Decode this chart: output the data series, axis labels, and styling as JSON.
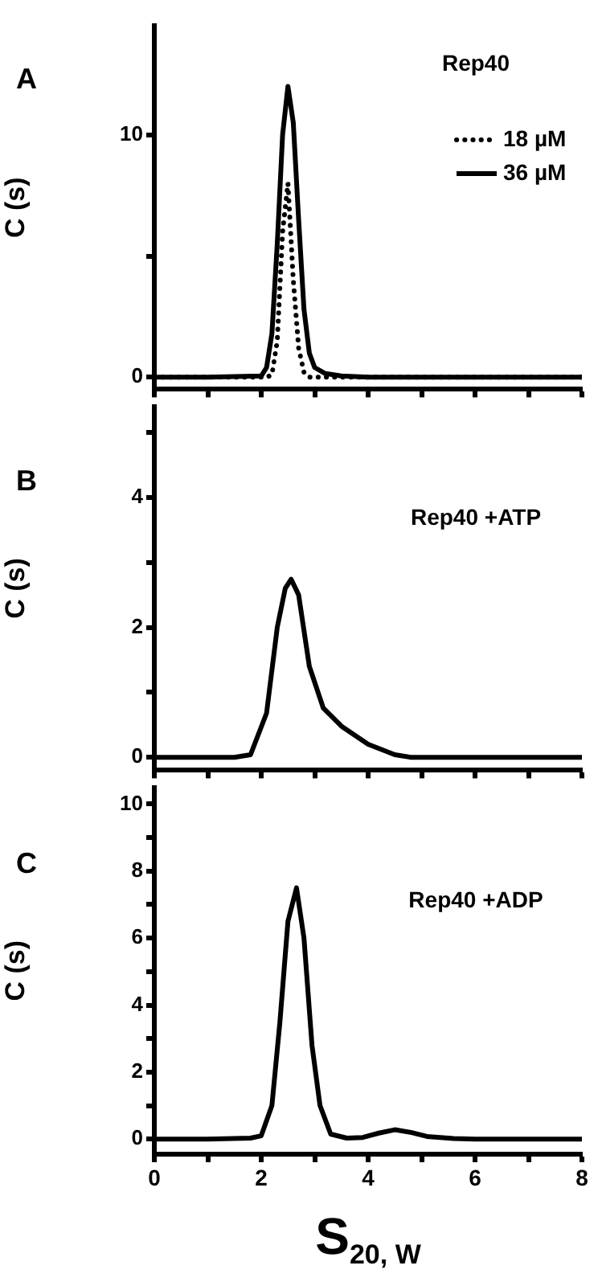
{
  "chart_data": [
    {
      "type": "line",
      "title": "A",
      "annotations": [
        "Rep40"
      ],
      "ylabel": "C (s)",
      "legend": "top right",
      "tick_labels": "y",
      "grid": false,
      "xlim": [
        0,
        8
      ],
      "xticks": [
        0,
        {
          "value": 1,
          "label": null
        },
        2,
        {
          "value": 3,
          "label": null
        },
        4,
        {
          "value": 5,
          "label": null
        },
        6,
        {
          "value": 7,
          "label": null
        },
        8
      ],
      "ylim": [
        -0.5,
        14.5
      ],
      "yticks": [
        0,
        {
          "value": 5,
          "label": null
        },
        10
      ],
      "series": [
        {
          "name": "18 µM",
          "color": "#000000",
          "line_style": "dotted",
          "x": [
            0,
            1,
            2,
            2.1,
            2.2,
            2.3,
            2.4,
            2.5,
            2.6,
            2.7,
            2.8,
            2.9,
            3.0,
            4,
            5,
            6,
            7,
            8
          ],
          "values": [
            0,
            0,
            0,
            0,
            0.1,
            1.5,
            6,
            8,
            4,
            1.2,
            0.2,
            0,
            0,
            0,
            0,
            0,
            0,
            0
          ]
        },
        {
          "name": "36 µM",
          "color": "#000000",
          "line_style": "solid",
          "x": [
            0,
            1,
            2,
            2.1,
            2.2,
            2.3,
            2.4,
            2.5,
            2.6,
            2.7,
            2.8,
            2.9,
            3.0,
            3.2,
            3.5,
            4,
            5,
            6,
            7,
            8
          ],
          "values": [
            0,
            0,
            0.05,
            0.4,
            1.8,
            5.5,
            10,
            12,
            10.5,
            6.5,
            2.8,
            1.0,
            0.4,
            0.15,
            0.05,
            0,
            0,
            0,
            0,
            0
          ]
        }
      ]
    },
    {
      "type": "line",
      "title": "B",
      "annotations": [
        "Rep40 +ATP"
      ],
      "ylabel": "C (s)",
      "tick_labels": "y",
      "grid": false,
      "xlim": [
        0,
        8
      ],
      "xticks": [
        0,
        {
          "value": 1,
          "label": null
        },
        2,
        {
          "value": 3,
          "label": null
        },
        4,
        {
          "value": 5,
          "label": null
        },
        6,
        {
          "value": 7,
          "label": null
        },
        8
      ],
      "ylim": [
        -0.2,
        5.4
      ],
      "yticks": [
        0,
        {
          "value": 1,
          "label": null
        },
        2,
        {
          "value": 3,
          "label": null
        },
        4,
        {
          "value": 5,
          "label": null
        }
      ],
      "series": [
        {
          "color": "#000000",
          "line_style": "solid",
          "x": [
            0,
            1,
            1.5,
            1.8,
            2.1,
            2.3,
            2.45,
            2.56,
            2.7,
            2.9,
            3.16,
            3.5,
            4.0,
            4.5,
            4.8,
            6,
            8
          ],
          "values": [
            0,
            0,
            0,
            0.04,
            0.68,
            2.0,
            2.6,
            2.74,
            2.5,
            1.4,
            0.76,
            0.48,
            0.2,
            0.04,
            0,
            0,
            0
          ]
        }
      ]
    },
    {
      "type": "line",
      "title": "C",
      "annotations": [
        "Rep40 +ADP"
      ],
      "ylabel": "C (s)",
      "xlabel": "S$_{20, W}$",
      "grid": false,
      "xlim": [
        0,
        8
      ],
      "xticks": [
        0,
        {
          "value": 1,
          "label": null
        },
        2,
        {
          "value": 3,
          "label": null
        },
        4,
        {
          "value": 5,
          "label": null
        },
        6,
        {
          "value": 7,
          "label": null
        },
        8
      ],
      "ylim": [
        -0.45,
        10.5
      ],
      "yticks": [
        0,
        {
          "value": 1,
          "label": null
        },
        2,
        {
          "value": 3,
          "label": null
        },
        4,
        {
          "value": 5,
          "label": null
        },
        6,
        {
          "value": 7,
          "label": null
        },
        8,
        {
          "value": 9,
          "label": null
        },
        10
      ],
      "series": [
        {
          "color": "#000000",
          "line_style": "solid",
          "x": [
            0,
            1,
            1.8,
            2.0,
            2.2,
            2.35,
            2.5,
            2.66,
            2.8,
            2.95,
            3.1,
            3.3,
            3.6,
            3.9,
            4.2,
            4.5,
            4.8,
            5.1,
            5.6,
            6,
            8
          ],
          "values": [
            0,
            0,
            0.03,
            0.1,
            1.0,
            3.5,
            6.5,
            7.5,
            6.0,
            2.8,
            1.0,
            0.15,
            0.03,
            0.05,
            0.18,
            0.28,
            0.2,
            0.08,
            0.02,
            0,
            0
          ]
        }
      ]
    }
  ]
}
